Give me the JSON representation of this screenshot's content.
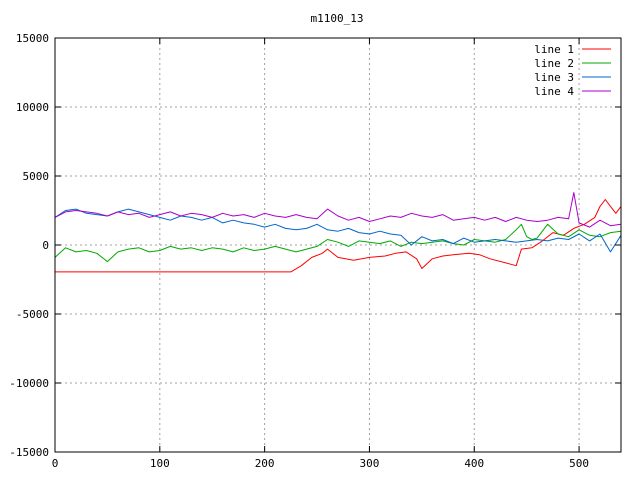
{
  "chart_data": {
    "type": "line",
    "title": "m1100_13",
    "xlabel": "",
    "ylabel": "",
    "xlim": [
      0,
      540
    ],
    "ylim": [
      -15000,
      15000
    ],
    "xticks": [
      0,
      100,
      200,
      300,
      400,
      500
    ],
    "yticks": [
      -15000,
      -10000,
      -5000,
      0,
      5000,
      10000,
      15000
    ],
    "grid": true,
    "legend_position": "top-right",
    "series": [
      {
        "name": "line 1",
        "color": "#ff0000",
        "points": [
          [
            0,
            -1950
          ],
          [
            50,
            -1950
          ],
          [
            100,
            -1950
          ],
          [
            150,
            -1950
          ],
          [
            200,
            -1950
          ],
          [
            225,
            -1950
          ],
          [
            235,
            -1500
          ],
          [
            245,
            -900
          ],
          [
            255,
            -600
          ],
          [
            260,
            -300
          ],
          [
            270,
            -900
          ],
          [
            285,
            -1100
          ],
          [
            300,
            -900
          ],
          [
            315,
            -800
          ],
          [
            325,
            -600
          ],
          [
            335,
            -500
          ],
          [
            345,
            -1000
          ],
          [
            350,
            -1700
          ],
          [
            360,
            -1000
          ],
          [
            370,
            -800
          ],
          [
            380,
            -700
          ],
          [
            395,
            -600
          ],
          [
            405,
            -700
          ],
          [
            415,
            -1000
          ],
          [
            430,
            -1300
          ],
          [
            440,
            -1500
          ],
          [
            445,
            -300
          ],
          [
            455,
            -200
          ],
          [
            465,
            300
          ],
          [
            475,
            900
          ],
          [
            485,
            700
          ],
          [
            495,
            1200
          ],
          [
            505,
            1500
          ],
          [
            515,
            2000
          ],
          [
            520,
            2800
          ],
          [
            525,
            3300
          ],
          [
            530,
            2800
          ],
          [
            535,
            2300
          ],
          [
            540,
            2800
          ]
        ]
      },
      {
        "name": "line 2",
        "color": "#00aa00",
        "points": [
          [
            0,
            -900
          ],
          [
            10,
            -200
          ],
          [
            20,
            -500
          ],
          [
            30,
            -400
          ],
          [
            40,
            -600
          ],
          [
            50,
            -1200
          ],
          [
            60,
            -500
          ],
          [
            70,
            -300
          ],
          [
            80,
            -200
          ],
          [
            90,
            -500
          ],
          [
            100,
            -400
          ],
          [
            110,
            -100
          ],
          [
            120,
            -300
          ],
          [
            130,
            -200
          ],
          [
            140,
            -400
          ],
          [
            150,
            -200
          ],
          [
            160,
            -300
          ],
          [
            170,
            -500
          ],
          [
            180,
            -200
          ],
          [
            190,
            -400
          ],
          [
            200,
            -300
          ],
          [
            210,
            -100
          ],
          [
            220,
            -300
          ],
          [
            230,
            -500
          ],
          [
            240,
            -300
          ],
          [
            250,
            -100
          ],
          [
            260,
            400
          ],
          [
            270,
            200
          ],
          [
            280,
            -100
          ],
          [
            290,
            300
          ],
          [
            300,
            200
          ],
          [
            310,
            100
          ],
          [
            320,
            300
          ],
          [
            330,
            -100
          ],
          [
            340,
            200
          ],
          [
            350,
            100
          ],
          [
            360,
            200
          ],
          [
            370,
            300
          ],
          [
            380,
            100
          ],
          [
            390,
            0
          ],
          [
            400,
            400
          ],
          [
            410,
            300
          ],
          [
            420,
            200
          ],
          [
            430,
            400
          ],
          [
            440,
            1100
          ],
          [
            445,
            1500
          ],
          [
            450,
            600
          ],
          [
            455,
            400
          ],
          [
            460,
            500
          ],
          [
            470,
            1500
          ],
          [
            480,
            800
          ],
          [
            490,
            600
          ],
          [
            500,
            1100
          ],
          [
            510,
            700
          ],
          [
            520,
            600
          ],
          [
            530,
            900
          ],
          [
            540,
            1000
          ]
        ]
      },
      {
        "name": "line 3",
        "color": "#0066cc",
        "points": [
          [
            0,
            2000
          ],
          [
            10,
            2500
          ],
          [
            20,
            2600
          ],
          [
            30,
            2300
          ],
          [
            40,
            2200
          ],
          [
            50,
            2100
          ],
          [
            60,
            2400
          ],
          [
            70,
            2600
          ],
          [
            80,
            2400
          ],
          [
            90,
            2200
          ],
          [
            100,
            2000
          ],
          [
            110,
            1800
          ],
          [
            120,
            2100
          ],
          [
            130,
            2000
          ],
          [
            140,
            1800
          ],
          [
            150,
            2000
          ],
          [
            160,
            1600
          ],
          [
            170,
            1800
          ],
          [
            180,
            1600
          ],
          [
            190,
            1500
          ],
          [
            200,
            1300
          ],
          [
            210,
            1500
          ],
          [
            220,
            1200
          ],
          [
            230,
            1100
          ],
          [
            240,
            1200
          ],
          [
            250,
            1500
          ],
          [
            260,
            1100
          ],
          [
            270,
            1000
          ],
          [
            280,
            1200
          ],
          [
            290,
            900
          ],
          [
            300,
            800
          ],
          [
            310,
            1000
          ],
          [
            320,
            800
          ],
          [
            330,
            700
          ],
          [
            340,
            0
          ],
          [
            350,
            600
          ],
          [
            360,
            300
          ],
          [
            370,
            400
          ],
          [
            380,
            100
          ],
          [
            390,
            500
          ],
          [
            400,
            200
          ],
          [
            410,
            300
          ],
          [
            420,
            400
          ],
          [
            430,
            300
          ],
          [
            440,
            200
          ],
          [
            450,
            300
          ],
          [
            460,
            400
          ],
          [
            470,
            300
          ],
          [
            480,
            500
          ],
          [
            490,
            400
          ],
          [
            500,
            800
          ],
          [
            510,
            300
          ],
          [
            520,
            800
          ],
          [
            530,
            -500
          ],
          [
            540,
            700
          ]
        ]
      },
      {
        "name": "line 4",
        "color": "#aa00cc",
        "points": [
          [
            0,
            2000
          ],
          [
            10,
            2400
          ],
          [
            20,
            2500
          ],
          [
            30,
            2400
          ],
          [
            40,
            2300
          ],
          [
            50,
            2100
          ],
          [
            60,
            2400
          ],
          [
            70,
            2200
          ],
          [
            80,
            2300
          ],
          [
            90,
            2000
          ],
          [
            100,
            2200
          ],
          [
            110,
            2400
          ],
          [
            120,
            2100
          ],
          [
            130,
            2300
          ],
          [
            140,
            2200
          ],
          [
            150,
            2000
          ],
          [
            160,
            2300
          ],
          [
            170,
            2100
          ],
          [
            180,
            2200
          ],
          [
            190,
            2000
          ],
          [
            200,
            2300
          ],
          [
            210,
            2100
          ],
          [
            220,
            2000
          ],
          [
            230,
            2200
          ],
          [
            240,
            2000
          ],
          [
            250,
            1900
          ],
          [
            260,
            2600
          ],
          [
            270,
            2100
          ],
          [
            280,
            1800
          ],
          [
            290,
            2000
          ],
          [
            300,
            1700
          ],
          [
            310,
            1900
          ],
          [
            320,
            2100
          ],
          [
            330,
            2000
          ],
          [
            340,
            2300
          ],
          [
            350,
            2100
          ],
          [
            360,
            2000
          ],
          [
            370,
            2200
          ],
          [
            380,
            1800
          ],
          [
            390,
            1900
          ],
          [
            400,
            2000
          ],
          [
            410,
            1800
          ],
          [
            420,
            2000
          ],
          [
            430,
            1700
          ],
          [
            440,
            2000
          ],
          [
            450,
            1800
          ],
          [
            460,
            1700
          ],
          [
            470,
            1800
          ],
          [
            480,
            2000
          ],
          [
            490,
            1900
          ],
          [
            495,
            3800
          ],
          [
            500,
            1600
          ],
          [
            510,
            1300
          ],
          [
            520,
            1800
          ],
          [
            530,
            1400
          ],
          [
            540,
            1500
          ]
        ]
      }
    ]
  }
}
